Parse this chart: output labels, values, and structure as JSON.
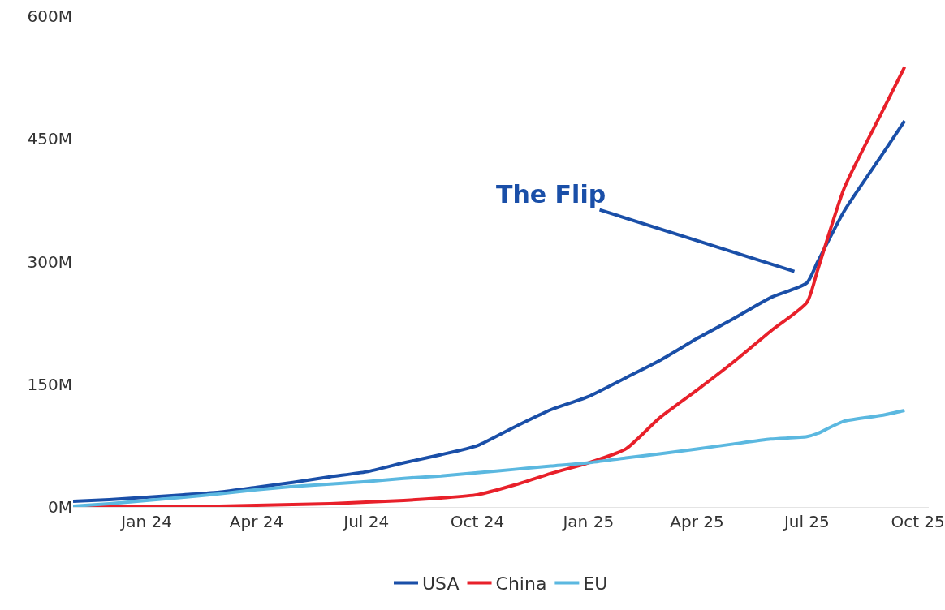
{
  "chart_data": {
    "type": "line",
    "annotations": [
      "The Flip"
    ],
    "x": [
      "2023-11-01",
      "2023-12-01",
      "2024-01-01",
      "2024-02-01",
      "2024-03-01",
      "2024-04-01",
      "2024-05-01",
      "2024-06-01",
      "2024-07-01",
      "2024-08-01",
      "2024-09-01",
      "2024-10-01",
      "2024-11-01",
      "2024-12-01",
      "2025-01-01",
      "2025-02-01",
      "2025-03-01",
      "2025-04-01",
      "2025-05-01",
      "2025-06-01",
      "2025-07-01",
      "2025-07-10",
      "2025-08-01",
      "2025-09-01",
      "2025-09-20"
    ],
    "series": [
      {
        "name": "USA",
        "color": "#1a4fa8",
        "values": [
          7,
          9,
          12,
          15,
          18,
          24,
          30,
          37,
          43,
          54,
          64,
          75,
          98,
          119,
          135,
          158,
          179,
          206,
          230,
          256,
          274,
          300,
          362,
          430,
          472
        ]
      },
      {
        "name": "China",
        "color": "#e8202a",
        "values": [
          0,
          0,
          0,
          1,
          1,
          2,
          3,
          4,
          6,
          8,
          11,
          15,
          27,
          41,
          54,
          71,
          109,
          143,
          177,
          215,
          250,
          290,
          390,
          482,
          538
        ]
      },
      {
        "name": "EU",
        "color": "#5bb8e0",
        "values": [
          1,
          4,
          8,
          12,
          16,
          21,
          25,
          28,
          31,
          35,
          38,
          42,
          46,
          50,
          54,
          60,
          65,
          71,
          77,
          83,
          86,
          90,
          105,
          112,
          118
        ]
      }
    ],
    "xlim": [
      "2023-11-01",
      "2025-10-10"
    ],
    "xticks": [
      {
        "value": "2024-01-01",
        "label": "Jan 24"
      },
      {
        "value": "2024-04-01",
        "label": "Apr 24"
      },
      {
        "value": "2024-07-01",
        "label": "Jul 24"
      },
      {
        "value": "2024-10-01",
        "label": "Oct 24"
      },
      {
        "value": "2025-01-01",
        "label": "Jan 25"
      },
      {
        "value": "2025-04-01",
        "label": "Apr 25"
      },
      {
        "value": "2025-07-01",
        "label": "Jul 25"
      },
      {
        "value": "2025-10-01",
        "label": "Oct 25"
      }
    ],
    "ylim": [
      0,
      600
    ],
    "yticks": [
      {
        "value": 0,
        "label": "0M"
      },
      {
        "value": 150,
        "label": "150M"
      },
      {
        "value": 300,
        "label": "300M"
      },
      {
        "value": 450,
        "label": "450M"
      },
      {
        "value": 600,
        "label": "600M"
      }
    ],
    "grid": false,
    "legend": "bottom",
    "marker": "none",
    "line_style": "solid"
  }
}
